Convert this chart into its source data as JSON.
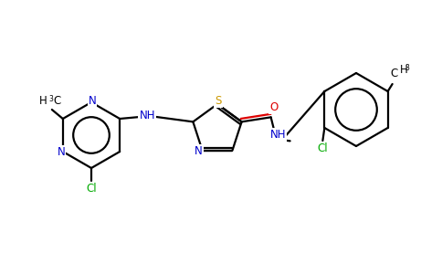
{
  "background_color": "#ffffff",
  "bond_color": "#000000",
  "atom_colors": {
    "N": "#0000cc",
    "S": "#cc9900",
    "O": "#dd0000",
    "Cl": "#00aa00",
    "C": "#000000",
    "H": "#000000"
  },
  "figsize": [
    4.84,
    3.0
  ],
  "dpi": 100,
  "lw": 1.6
}
